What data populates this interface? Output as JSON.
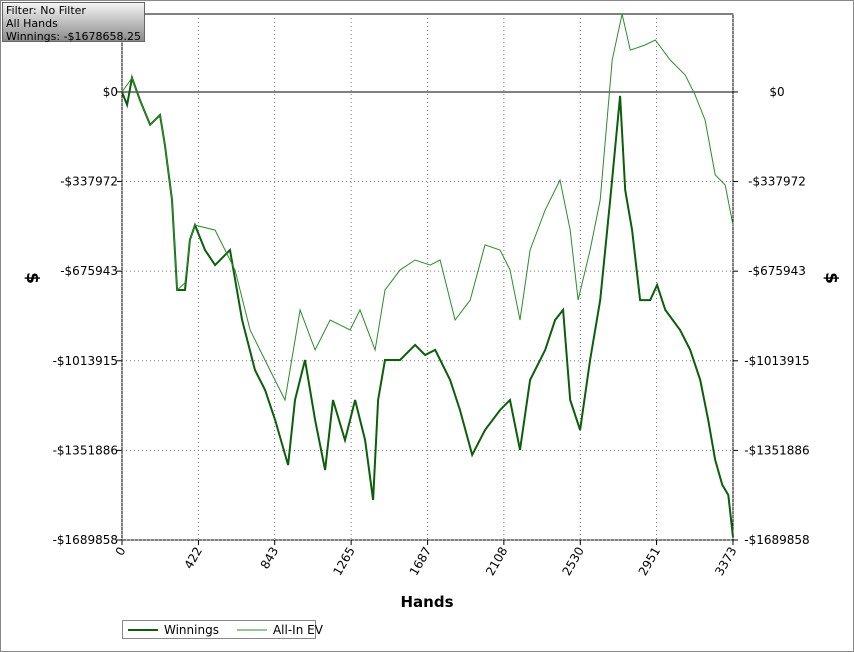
{
  "info_box": {
    "lines": [
      "Filter: No Filter",
      "All Hands",
      "Winnings: -$1678658.25"
    ]
  },
  "chart_data": {
    "type": "line",
    "xlabel": "Hands",
    "ylabel": "$",
    "xlim": [
      0,
      3373
    ],
    "xticks": [
      0,
      422,
      843,
      1265,
      1687,
      2108,
      2530,
      2951,
      3373
    ],
    "ylim": [
      -1689858,
      294000
    ],
    "yticks": [
      {
        "value": 0,
        "label": "$0"
      },
      {
        "value": -337972,
        "label": "-$337972"
      },
      {
        "value": -675943,
        "label": "-$675943"
      },
      {
        "value": -1013915,
        "label": "-$1013915"
      },
      {
        "value": -1351886,
        "label": "-$1351886"
      },
      {
        "value": -1689858,
        "label": "-$1689858"
      }
    ],
    "grid": true,
    "series": [
      {
        "name": "Winnings",
        "color": "#0b5e0b",
        "x": [
          0,
          28,
          55,
          99,
          155,
          210,
          237,
          276,
          304,
          348,
          375,
          403,
          458,
          514,
          596,
          663,
          734,
          790,
          845,
          917,
          955,
          1010,
          1066,
          1121,
          1165,
          1231,
          1287,
          1342,
          1386,
          1414,
          1452,
          1535,
          1618,
          1673,
          1729,
          1811,
          1866,
          1933,
          2004,
          2087,
          2142,
          2197,
          2253,
          2336,
          2391,
          2435,
          2474,
          2529,
          2584,
          2640,
          2695,
          2750,
          2778,
          2816,
          2860,
          2916,
          2954,
          2999,
          3081,
          3137,
          3192,
          3236,
          3275,
          3314,
          3347,
          3373
        ],
        "values": [
          0,
          -49000,
          53000,
          -30000,
          -124000,
          -87000,
          -200000,
          -407000,
          -747000,
          -747000,
          -558000,
          -502000,
          -596000,
          -653000,
          -596000,
          -860000,
          -1049000,
          -1124000,
          -1237000,
          -1407000,
          -1162000,
          -1011000,
          -1237000,
          -1426000,
          -1162000,
          -1313000,
          -1162000,
          -1313000,
          -1539000,
          -1162000,
          -1011000,
          -1011000,
          -954000,
          -992000,
          -973000,
          -1086000,
          -1200000,
          -1369000,
          -1275000,
          -1200000,
          -1162000,
          -1350000,
          -1086000,
          -973000,
          -860000,
          -822000,
          -1162000,
          -1275000,
          -1011000,
          -785000,
          -407000,
          -15000,
          -370000,
          -521000,
          -785000,
          -785000,
          -728000,
          -822000,
          -898000,
          -973000,
          -1086000,
          -1237000,
          -1388000,
          -1482000,
          -1520000,
          -1678658
        ]
      },
      {
        "name": "All-In EV",
        "color": "#2e8b2e",
        "x": [
          0,
          55,
          99,
          155,
          210,
          237,
          276,
          304,
          348,
          375,
          403,
          514,
          624,
          707,
          817,
          900,
          983,
          1066,
          1149,
          1259,
          1314,
          1397,
          1452,
          1535,
          1618,
          1701,
          1756,
          1839,
          1922,
          2004,
          2087,
          2142,
          2197,
          2253,
          2336,
          2418,
          2474,
          2518,
          2584,
          2640,
          2706,
          2761,
          2806,
          2888,
          2944,
          3026,
          3109,
          3164,
          3219,
          3275,
          3330,
          3373
        ],
        "values": [
          0,
          53000,
          -30000,
          -124000,
          -87000,
          -200000,
          -407000,
          -747000,
          -720000,
          -558000,
          -502000,
          -521000,
          -671000,
          -898000,
          -1049000,
          -1162000,
          -822000,
          -973000,
          -860000,
          -898000,
          -822000,
          -973000,
          -747000,
          -671000,
          -634000,
          -653000,
          -634000,
          -860000,
          -785000,
          -577000,
          -596000,
          -671000,
          -860000,
          -596000,
          -445000,
          -332000,
          -521000,
          -785000,
          -596000,
          -407000,
          121000,
          294000,
          158000,
          177000,
          196000,
          121000,
          64000,
          -11000,
          -106000,
          -313000,
          -351000,
          -502000
        ]
      }
    ]
  }
}
